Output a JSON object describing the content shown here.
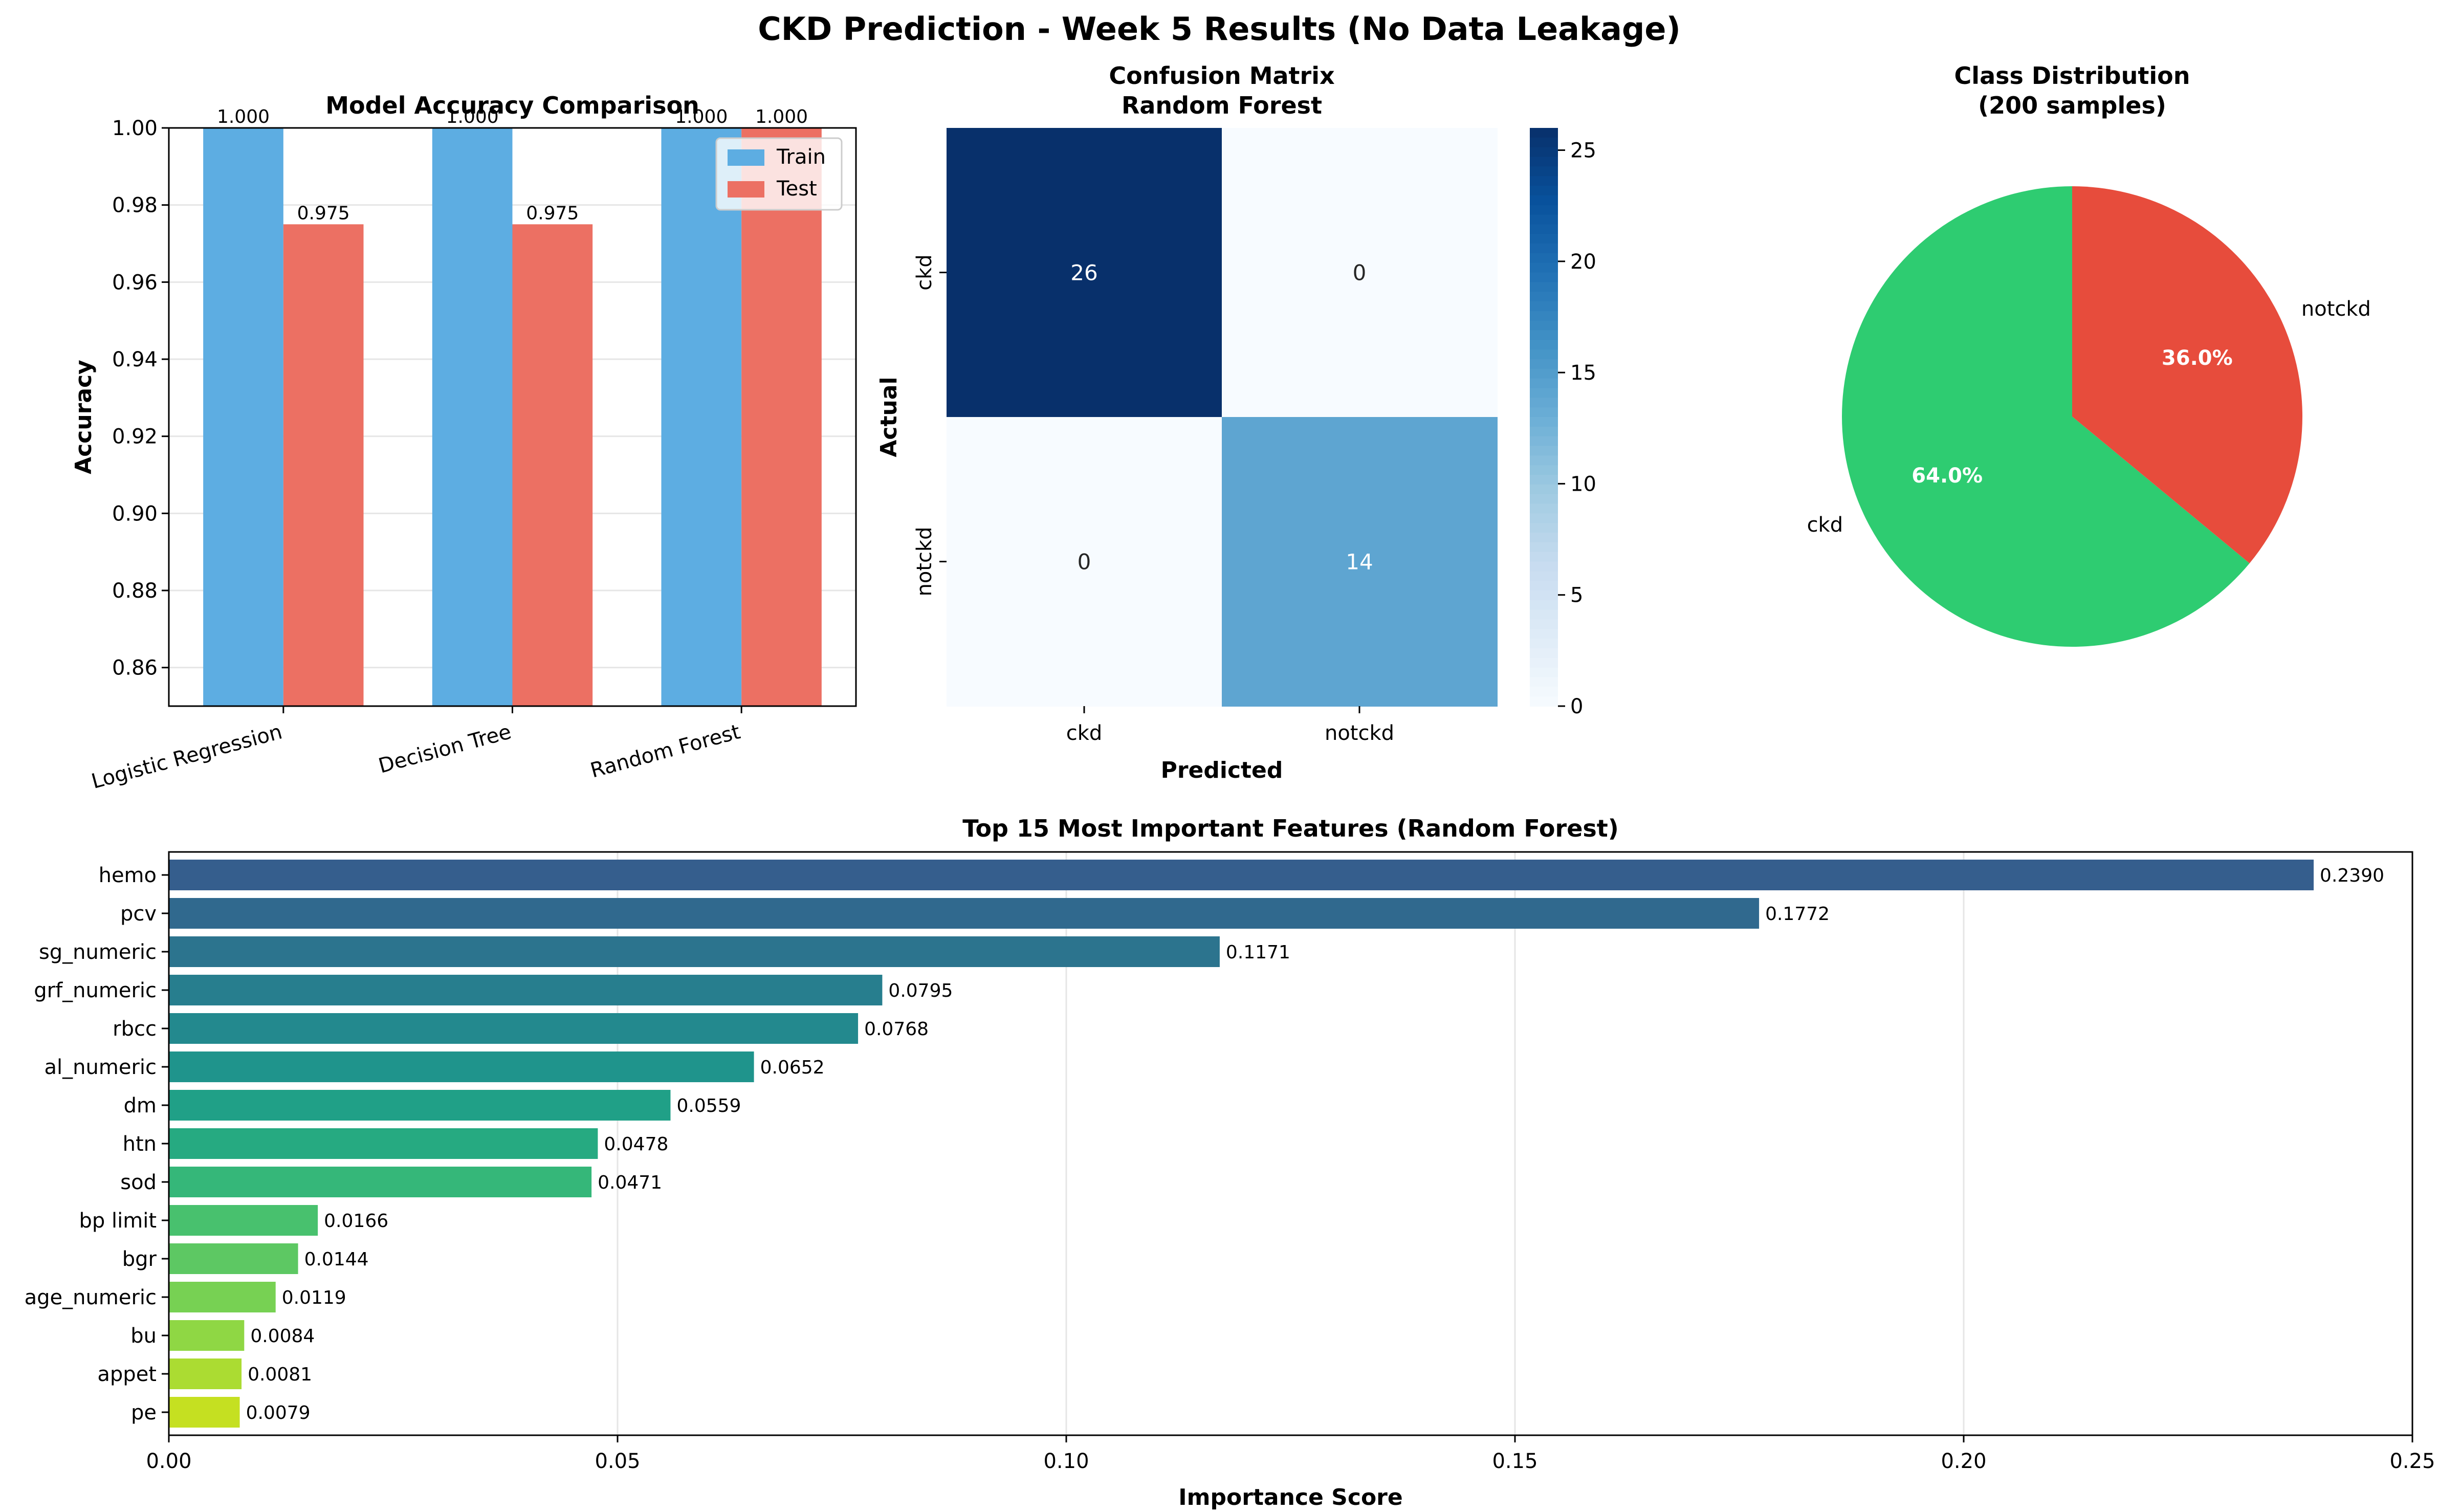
{
  "suptitle": "CKD Prediction - Week 5 Results (No Data Leakage)",
  "chart_data": [
    {
      "type": "bar",
      "title": "Model Accuracy Comparison",
      "xlabel": "",
      "ylabel": "Accuracy",
      "categories": [
        "Logistic Regression",
        "Decision Tree",
        "Random Forest"
      ],
      "series": [
        {
          "name": "Train",
          "color": "#5DADE2",
          "values": [
            1.0,
            1.0,
            1.0
          ],
          "labels": [
            "1.000",
            "1.000",
            "1.000"
          ]
        },
        {
          "name": "Test",
          "color": "#EC7063",
          "values": [
            0.975,
            0.975,
            1.0
          ],
          "labels": [
            "0.975",
            "0.975",
            "1.000"
          ]
        }
      ],
      "ylim": [
        0.85,
        1.0
      ],
      "yticks": [
        0.86,
        0.88,
        0.9,
        0.92,
        0.94,
        0.96,
        0.98,
        1.0
      ],
      "ytick_labels": [
        "0.86",
        "0.88",
        "0.90",
        "0.92",
        "0.94",
        "0.96",
        "0.98",
        "1.00"
      ],
      "grid": "y",
      "legend": "top-right"
    },
    {
      "type": "heatmap",
      "title": "Confusion Matrix\nRandom Forest",
      "xlabel": "Predicted",
      "ylabel": "Actual",
      "x_categories": [
        "ckd",
        "notckd"
      ],
      "y_categories": [
        "ckd",
        "notckd"
      ],
      "values": [
        [
          26,
          0
        ],
        [
          0,
          14
        ]
      ],
      "colormap": "Blues",
      "colorbar_range": [
        0,
        26
      ],
      "colorbar_ticks": [
        0,
        5,
        10,
        15,
        20,
        25
      ],
      "colorbar_tick_labels": [
        "0",
        "5",
        "10",
        "15",
        "20",
        "25"
      ]
    },
    {
      "type": "pie",
      "title": "Class Distribution\n(200 samples)",
      "labels": [
        "ckd",
        "notckd"
      ],
      "values": [
        64.0,
        36.0
      ],
      "pct_labels": [
        "64.0%",
        "36.0%"
      ],
      "colors": [
        "#2ECC71",
        "#E74C3C"
      ],
      "start_angle": 90
    },
    {
      "type": "bar",
      "orientation": "horizontal",
      "title": "Top 15 Most Important Features (Random Forest)",
      "xlabel": "Importance Score",
      "ylabel": "",
      "categories": [
        "hemo",
        "pcv",
        "sg_numeric",
        "grf_numeric",
        "rbcc",
        "al_numeric",
        "dm",
        "htn",
        "sod",
        "bp limit",
        "bgr",
        "age_numeric",
        "bu",
        "appet",
        "pe"
      ],
      "values": [
        0.239,
        0.1772,
        0.1171,
        0.0795,
        0.0768,
        0.0652,
        0.0559,
        0.0478,
        0.0471,
        0.0166,
        0.0144,
        0.0119,
        0.0084,
        0.0081,
        0.0079
      ],
      "value_labels": [
        "0.2390",
        "0.1772",
        "0.1171",
        "0.0795",
        "0.0768",
        "0.0652",
        "0.0559",
        "0.0478",
        "0.0471",
        "0.0166",
        "0.0144",
        "0.0119",
        "0.0084",
        "0.0081",
        "0.0079"
      ],
      "xlim": [
        0,
        0.25
      ],
      "xticks": [
        0.0,
        0.05,
        0.1,
        0.15,
        0.2,
        0.25
      ],
      "xtick_labels": [
        "0.00",
        "0.05",
        "0.10",
        "0.15",
        "0.20",
        "0.25"
      ],
      "colors": [
        "#355E8D",
        "#30698E",
        "#2C748E",
        "#277E8E",
        "#23898E",
        "#1F948C",
        "#20A087",
        "#26AA81",
        "#35B779",
        "#48C16E",
        "#5DC863",
        "#77D153",
        "#8FD744",
        "#ABDC32",
        "#C5E021"
      ],
      "grid": "x"
    }
  ]
}
